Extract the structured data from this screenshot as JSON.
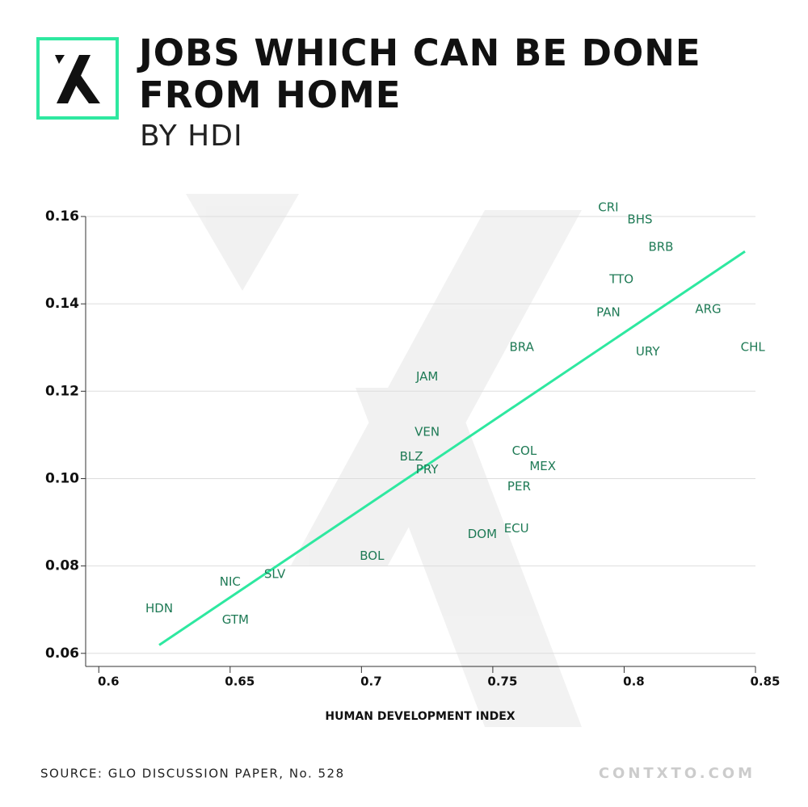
{
  "chart_data": {
    "type": "scatter",
    "title": "JOBS WHICH CAN BE DONE FROM HOME",
    "subtitle": "BY HDI",
    "xlabel": "HUMAN DEVELOPMENT INDEX",
    "source": "SOURCE: GLO DISCUSSION PAPER, No. 528",
    "brand": "CONTXTO.COM",
    "labels": [
      "CRI",
      "BHS",
      "BRB",
      "TTO",
      "PAN",
      "ARG",
      "URY",
      "CHL",
      "BRA",
      "JAM",
      "VEN",
      "BLZ",
      "PRY",
      "COL",
      "MEX",
      "PER",
      "ECU",
      "DOM",
      "BOL",
      "SLV",
      "NIC",
      "HDN",
      "GTM"
    ],
    "x": [
      0.794,
      0.806,
      0.814,
      0.799,
      0.794,
      0.832,
      0.809,
      0.849,
      0.761,
      0.725,
      0.725,
      0.719,
      0.725,
      0.762,
      0.769,
      0.76,
      0.759,
      0.746,
      0.704,
      0.667,
      0.65,
      0.623,
      0.652
    ],
    "values": [
      0.162,
      0.1593,
      0.153,
      0.1456,
      0.138,
      0.1387,
      0.129,
      0.13,
      0.13,
      0.1233,
      0.1106,
      0.105,
      0.102,
      0.1063,
      0.1028,
      0.0981,
      0.0885,
      0.0872,
      0.0822,
      0.0781,
      0.0763,
      0.0702,
      0.0676
    ],
    "color": "#1e7a55",
    "trendline": {
      "x": [
        0.623,
        0.846
      ],
      "values": [
        0.0619,
        0.152
      ],
      "color": "#2ee8a0"
    },
    "xlim": [
      0.595,
      0.85
    ],
    "ylim": [
      0.057,
      0.16
    ],
    "xticks": [
      0.6,
      0.65,
      0.7,
      0.75,
      0.8,
      0.85
    ],
    "yticks": [
      0.06,
      0.08,
      {
        "value": 0.1,
        "label": "0.10"
      },
      0.12,
      0.14,
      0.16
    ],
    "grid": true
  }
}
